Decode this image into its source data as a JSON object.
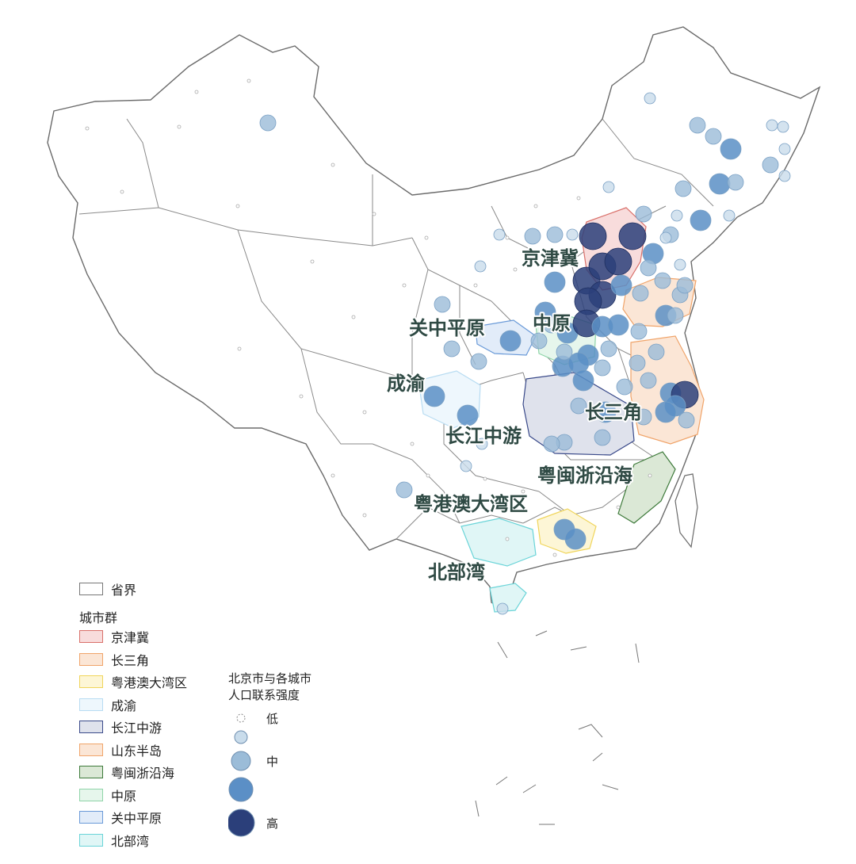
{
  "legend": {
    "province_label": "省界",
    "group_title": "城市群",
    "clusters": [
      {
        "label": "京津冀",
        "border": "#d9706a",
        "fill": "#f8dcdc"
      },
      {
        "label": "长三角",
        "border": "#f0a46a",
        "fill": "#fbe6d6"
      },
      {
        "label": "粤港澳大湾区",
        "border": "#f0d55a",
        "fill": "#fdf6d6"
      },
      {
        "label": "成渝",
        "border": "#b8dcf2",
        "fill": "#eef7fd"
      },
      {
        "label": "长江中游",
        "border": "#3a4a8a",
        "fill": "#dfe2ec"
      },
      {
        "label": "山东半岛",
        "border": "#f0a46a",
        "fill": "#fbe6d6"
      },
      {
        "label": "粤闽浙沿海",
        "border": "#3d7a3a",
        "fill": "#dbe8d6"
      },
      {
        "label": "中原",
        "border": "#8fd4a8",
        "fill": "#e6f6ec"
      },
      {
        "label": "关中平原",
        "border": "#6a9ad8",
        "fill": "#e2ecf9"
      },
      {
        "label": "北部湾",
        "border": "#6ad4d8",
        "fill": "#e0f6f6"
      }
    ],
    "strength_title_line1": "北京市与各城市",
    "strength_title_line2": "人口联系强度",
    "strength_levels": [
      {
        "label": "低",
        "color": "#ffffff"
      },
      {
        "label": "",
        "color": "#c9dceb"
      },
      {
        "label": "中",
        "color": "#9bbcd8"
      },
      {
        "label": "",
        "color": "#5b8fc6"
      },
      {
        "label": "高",
        "color": "#2b3f7a"
      }
    ]
  },
  "map_labels": [
    {
      "text": "京津冀"
    },
    {
      "text": "关中平原"
    },
    {
      "text": "中原"
    },
    {
      "text": "成渝"
    },
    {
      "text": "长三角"
    },
    {
      "text": "长江中游"
    },
    {
      "text": "粤闽浙沿海"
    },
    {
      "text": "粤港澳大湾区"
    },
    {
      "text": "北部湾"
    }
  ],
  "colors": {
    "province_border": "#777777",
    "level_1": "#ffffff",
    "level_2": "#c9dceb",
    "level_3": "#9bbcd8",
    "level_4": "#5b8fc6",
    "level_5": "#2b3f7a"
  }
}
